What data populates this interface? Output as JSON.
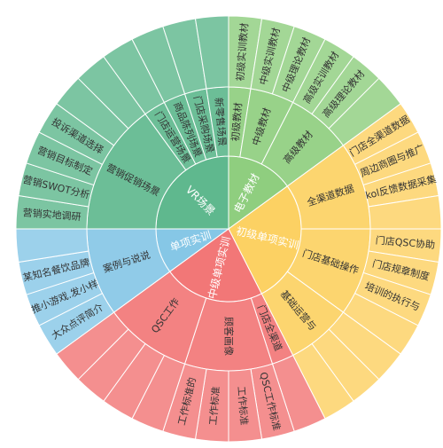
{
  "chart_data": {
    "type": "sunburst",
    "colors": {
      "green": "#8fce7f",
      "teal": "#5fb88e",
      "yellow": "#fcd163",
      "red": "#f27777",
      "blue": "#86c7e6"
    },
    "root": [
      {
        "name": "电子教材",
        "color": "green",
        "value": 6,
        "children": [
          {
            "name": "初级教材",
            "value": 1,
            "children": [
              {
                "name": "初级实训教材",
                "value": 1
              }
            ]
          },
          {
            "name": "中级教材",
            "value": 2,
            "children": [
              {
                "name": "中级实训教材",
                "value": 1
              },
              {
                "name": "中级理论教材",
                "value": 1
              }
            ]
          },
          {
            "name": "高级教材",
            "value": 3,
            "children": [
              {
                "name": "高级实训教材",
                "value": 1
              },
              {
                "name": "高级理论教材",
                "value": 1
              },
              {
                "name": "",
                "value": 1
              }
            ]
          }
        ]
      },
      {
        "name": "初级单项实训",
        "color": "yellow",
        "value": 11,
        "children": [
          {
            "name": "全渠道数据",
            "value": 4,
            "children": [
              {
                "name": "门店全渠道数据",
                "value": 1
              },
              {
                "name": "周边商圈与推广",
                "value": 1
              },
              {
                "name": "kol反馈数据采集",
                "value": 1
              },
              {
                "name": "",
                "value": 1
              }
            ]
          },
          {
            "name": "门店基础操作",
            "value": 4,
            "children": [
              {
                "name": "门店QSC协助",
                "value": 1
              },
              {
                "name": "门店规章制度",
                "value": 1
              },
              {
                "name": "培训的执行与",
                "value": 1
              },
              {
                "name": "",
                "value": 1
              }
            ]
          },
          {
            "name": "基础运营与",
            "value": 3,
            "children": [
              {
                "name": "",
                "value": 1
              },
              {
                "name": "",
                "value": 1
              },
              {
                "name": "",
                "value": 1
              }
            ]
          }
        ]
      },
      {
        "name": "中级单项实训",
        "color": "red",
        "value": 9,
        "children": [
          {
            "name": "门店全渠道",
            "value": 1,
            "children": [
              {
                "name": "",
                "value": 1
              }
            ]
          },
          {
            "name": "顾客画像",
            "value": 4,
            "children": [
              {
                "name": "QSC工作标准",
                "value": 1
              },
              {
                "name": "工作标准",
                "value": 1
              },
              {
                "name": "工作标准",
                "value": 1
              },
              {
                "name": "工作标准的",
                "value": 1
              }
            ]
          },
          {
            "name": "QSC工作",
            "value": 4,
            "children": [
              {
                "name": "",
                "value": 1
              },
              {
                "name": "",
                "value": 1
              },
              {
                "name": "",
                "value": 1
              },
              {
                "name": "",
                "value": 1
              }
            ]
          }
        ]
      },
      {
        "name": "单项实训",
        "color": "blue",
        "value": 4,
        "children": [
          {
            "name": "案例与说说",
            "value": 4,
            "children": [
              {
                "name": "大众点评简介",
                "value": 1
              },
              {
                "name": "推小游戏.发小样",
                "value": 1
              },
              {
                "name": "某知名餐饮品牌",
                "value": 1
              },
              {
                "name": "",
                "value": 1
              }
            ]
          }
        ]
      },
      {
        "name": "VR场景",
        "color": "teal",
        "value": 10,
        "children": [
          {
            "name": "营销促销场景",
            "value": 6,
            "children": [
              {
                "name": "营销实地调研",
                "value": 1
              },
              {
                "name": "营销SWOT分析",
                "value": 1
              },
              {
                "name": "营销目标制定",
                "value": 1
              },
              {
                "name": "投诉渠道选择",
                "value": 1
              },
              {
                "name": "",
                "value": 1
              },
              {
                "name": "",
                "value": 1
              }
            ]
          },
          {
            "name": "门店运营场景",
            "value": 1,
            "children": [
              {
                "name": "",
                "value": 1
              }
            ]
          },
          {
            "name": "商品陈列场景",
            "value": 1,
            "children": [
              {
                "name": "",
                "value": 1
              }
            ]
          },
          {
            "name": "门店采购场景",
            "value": 1,
            "children": [
              {
                "name": "",
                "value": 1
              }
            ]
          },
          {
            "name": "新零售场景",
            "value": 1,
            "children": [
              {
                "name": "",
                "value": 1
              }
            ]
          }
        ]
      }
    ]
  }
}
